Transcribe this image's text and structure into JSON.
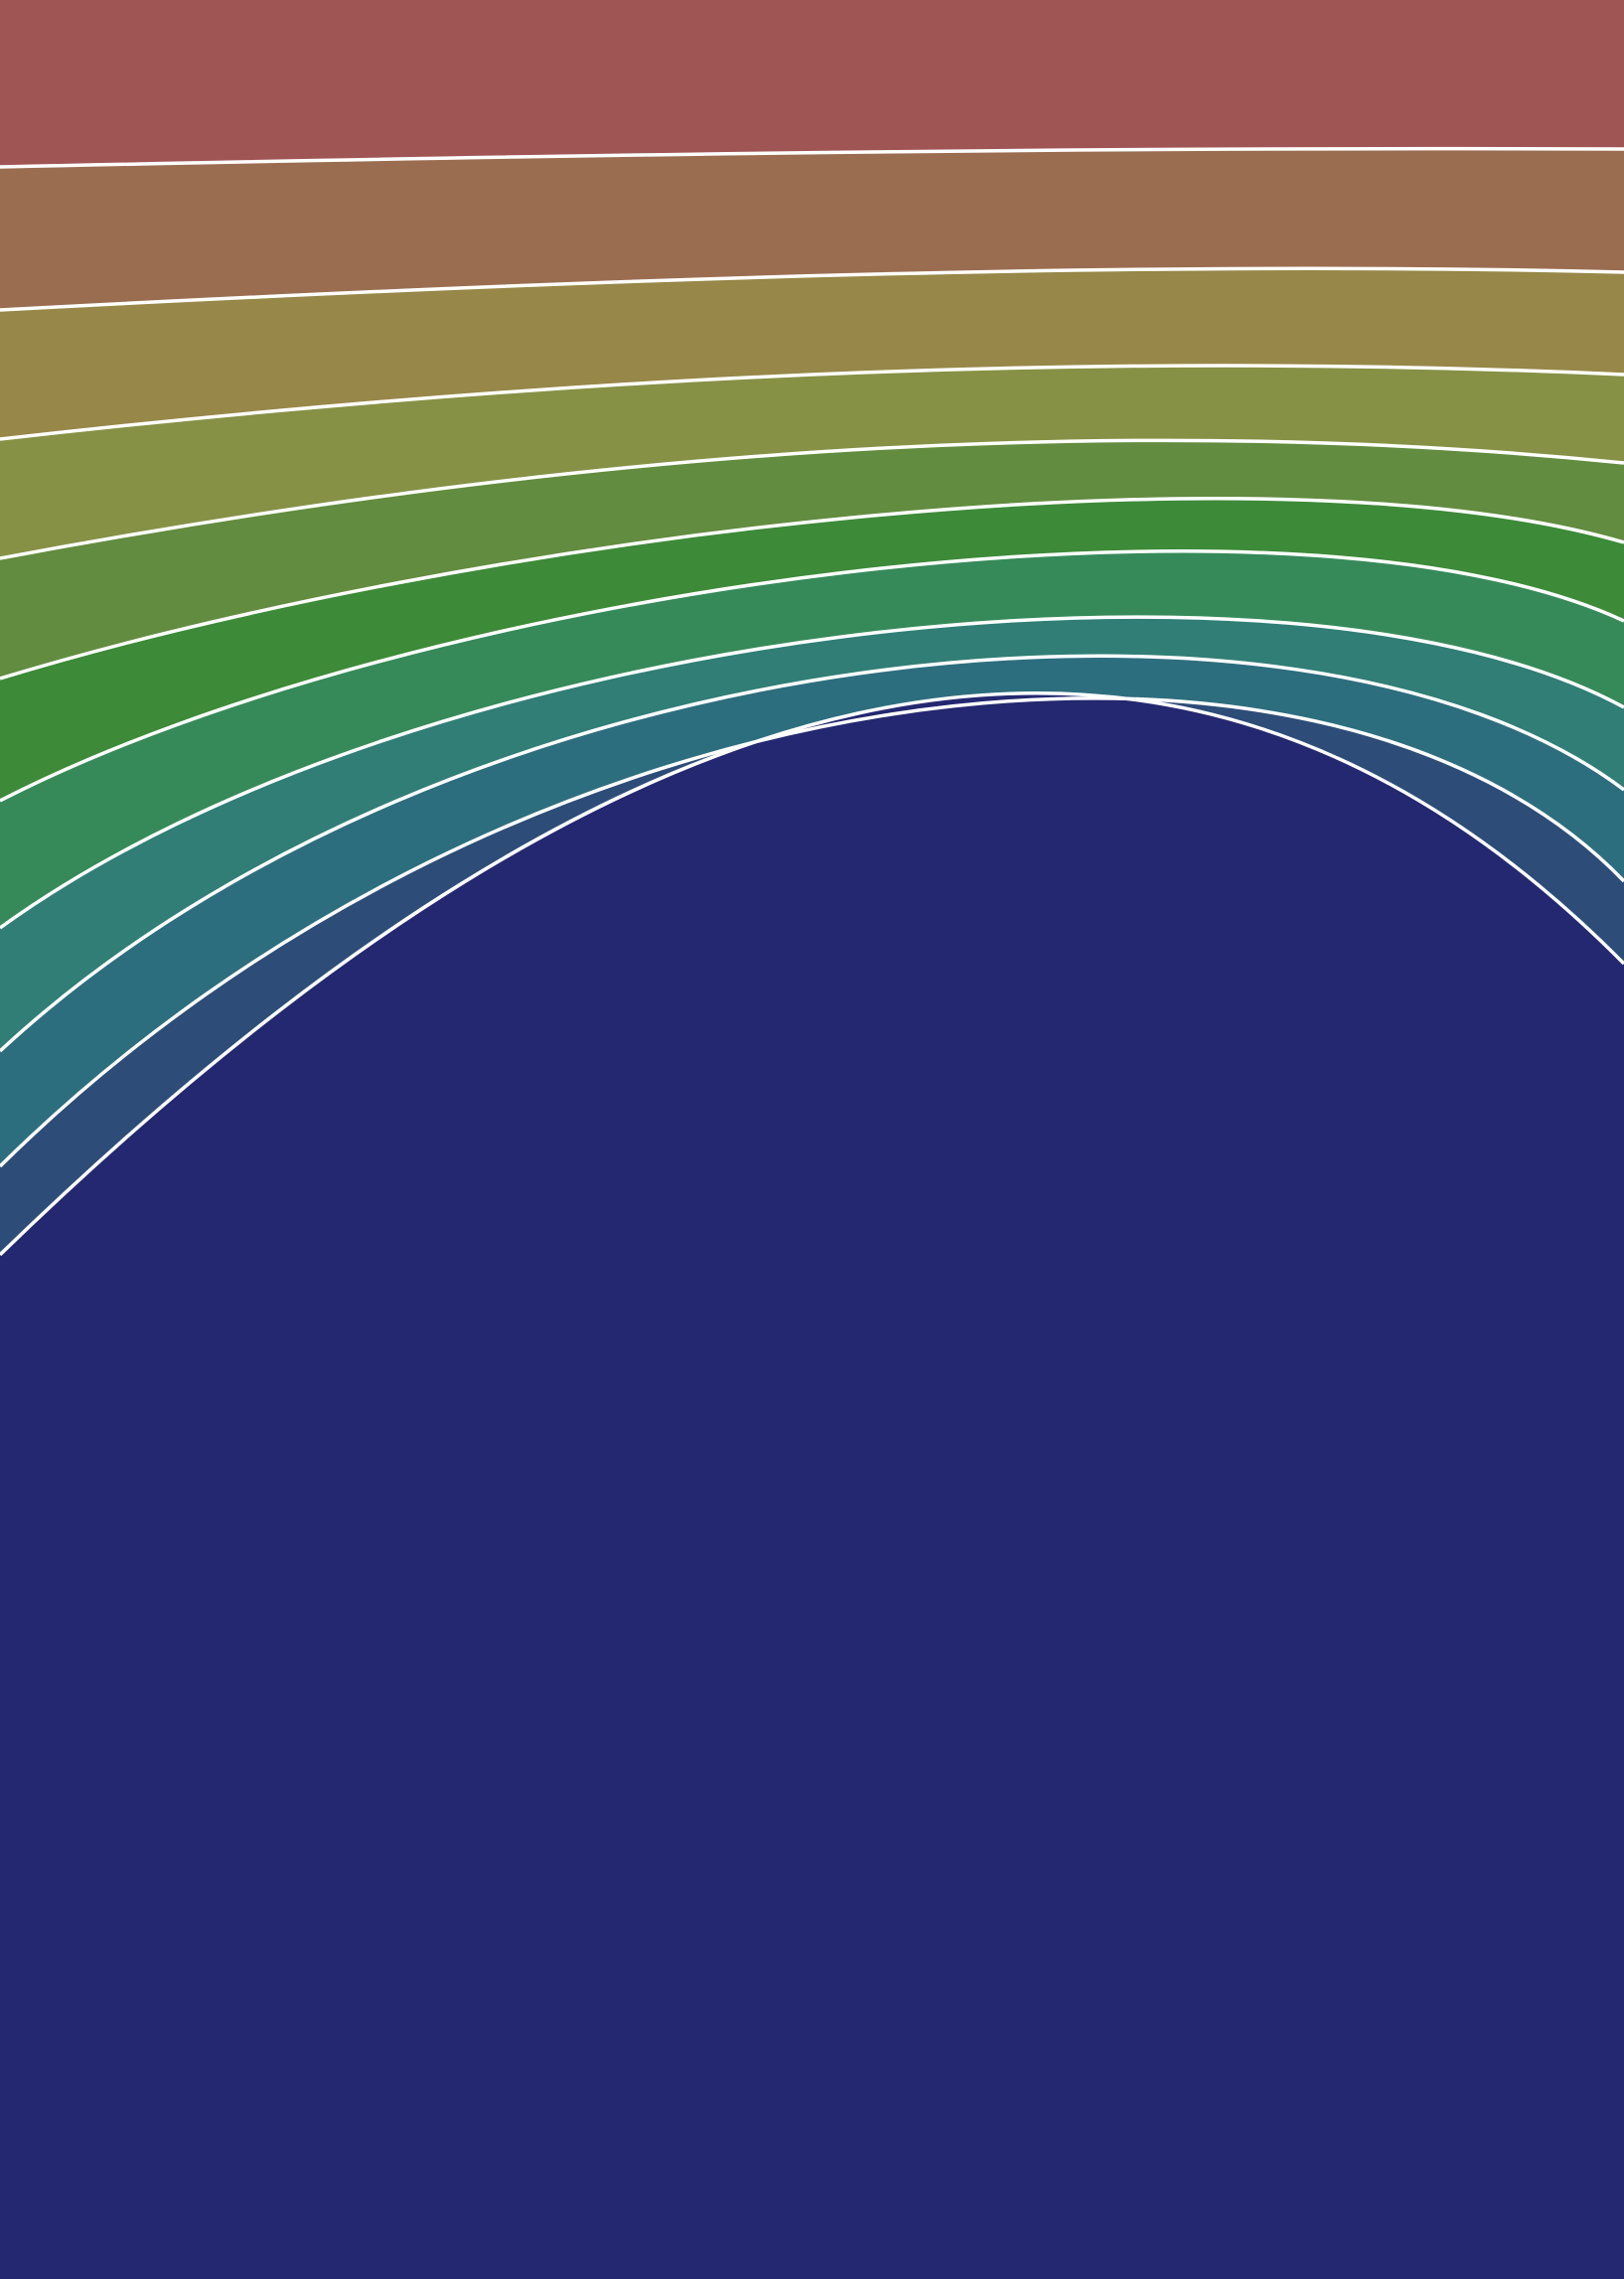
{
  "artwork": {
    "band_count": 11,
    "boundary_line_color": "#ffffff",
    "bands": [
      {
        "color": "#a05555"
      },
      {
        "color": "#9b6d50"
      },
      {
        "color": "#978748"
      },
      {
        "color": "#869145"
      },
      {
        "color": "#628c3f"
      },
      {
        "color": "#3d8a38"
      },
      {
        "color": "#368a59"
      },
      {
        "color": "#307e76"
      },
      {
        "color": "#2d6e7e"
      },
      {
        "color": "#2d4d78"
      },
      {
        "color": "#242870"
      }
    ]
  }
}
